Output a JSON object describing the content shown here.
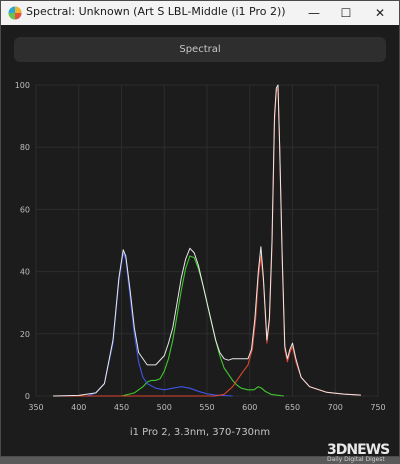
{
  "window": {
    "title": "Spectral: Unknown (Art S LBL-Middle (i1 Pro 2))",
    "minimize_glyph": "—",
    "maximize_glyph": "☐",
    "close_glyph": "✕"
  },
  "header": {
    "label": "Spectral"
  },
  "caption": "i1 Pro 2, 3.3nm, 370-730nm",
  "watermark": {
    "logo": "3DNEWS",
    "tagline": "Daily Digital Digest"
  },
  "colors": {
    "white": "#e8e8e8",
    "red": "#e0452e",
    "green": "#3fc92c",
    "blue": "#3f55e0",
    "grid": "#2c2c2c",
    "tick_text": "#bdbdbd"
  },
  "chart_data": {
    "type": "line",
    "title": "",
    "xlabel": "",
    "ylabel": "",
    "xlim": [
      350,
      750
    ],
    "ylim": [
      0,
      100
    ],
    "xticks": [
      350,
      400,
      450,
      500,
      550,
      600,
      650,
      700,
      750
    ],
    "yticks": [
      0,
      20,
      40,
      60,
      80,
      100
    ],
    "grid": true,
    "series": [
      {
        "color": "white",
        "points": [
          [
            370,
            0
          ],
          [
            400,
            0.2
          ],
          [
            420,
            1
          ],
          [
            430,
            4
          ],
          [
            440,
            18
          ],
          [
            447,
            38
          ],
          [
            452,
            47
          ],
          [
            455,
            45
          ],
          [
            460,
            34
          ],
          [
            465,
            22
          ],
          [
            470,
            14
          ],
          [
            480,
            10
          ],
          [
            490,
            10
          ],
          [
            500,
            13
          ],
          [
            505,
            17
          ],
          [
            510,
            22
          ],
          [
            515,
            30
          ],
          [
            520,
            38
          ],
          [
            525,
            44
          ],
          [
            530,
            47.5
          ],
          [
            535,
            46
          ],
          [
            540,
            42
          ],
          [
            545,
            36
          ],
          [
            550,
            30
          ],
          [
            555,
            24
          ],
          [
            560,
            18
          ],
          [
            565,
            14
          ],
          [
            570,
            12
          ],
          [
            575,
            11.5
          ],
          [
            580,
            12
          ],
          [
            590,
            12
          ],
          [
            598,
            12
          ],
          [
            602,
            15
          ],
          [
            606,
            25
          ],
          [
            610,
            40
          ],
          [
            613,
            48
          ],
          [
            616,
            38
          ],
          [
            620,
            18
          ],
          [
            623,
            25
          ],
          [
            626,
            50
          ],
          [
            629,
            90
          ],
          [
            631,
            99
          ],
          [
            633,
            100
          ],
          [
            635,
            80
          ],
          [
            638,
            45
          ],
          [
            641,
            16
          ],
          [
            644,
            12
          ],
          [
            647,
            15
          ],
          [
            650,
            17
          ],
          [
            654,
            12
          ],
          [
            660,
            6
          ],
          [
            670,
            3
          ],
          [
            690,
            1.2
          ],
          [
            710,
            0.6
          ],
          [
            730,
            0.3
          ]
        ]
      },
      {
        "color": "red",
        "points": [
          [
            370,
            0
          ],
          [
            560,
            0
          ],
          [
            570,
            0.5
          ],
          [
            580,
            3
          ],
          [
            590,
            7
          ],
          [
            598,
            10
          ],
          [
            603,
            15
          ],
          [
            607,
            25
          ],
          [
            610,
            38
          ],
          [
            613,
            45
          ],
          [
            616,
            37
          ],
          [
            620,
            17
          ],
          [
            623,
            24
          ],
          [
            626,
            48
          ],
          [
            629,
            88
          ],
          [
            631,
            98
          ],
          [
            633,
            99
          ],
          [
            635,
            79
          ],
          [
            638,
            44
          ],
          [
            641,
            15
          ],
          [
            644,
            11
          ],
          [
            647,
            14
          ],
          [
            650,
            16
          ],
          [
            654,
            11
          ],
          [
            660,
            6
          ],
          [
            670,
            3
          ],
          [
            690,
            1.2
          ],
          [
            710,
            0.6
          ],
          [
            730,
            0.3
          ]
        ]
      },
      {
        "color": "green",
        "points": [
          [
            370,
            0
          ],
          [
            450,
            0
          ],
          [
            465,
            1
          ],
          [
            475,
            3
          ],
          [
            480,
            4.5
          ],
          [
            485,
            5
          ],
          [
            490,
            5
          ],
          [
            495,
            5.5
          ],
          [
            500,
            8
          ],
          [
            505,
            12
          ],
          [
            510,
            18
          ],
          [
            515,
            26
          ],
          [
            520,
            34
          ],
          [
            525,
            41
          ],
          [
            530,
            45
          ],
          [
            535,
            44.5
          ],
          [
            540,
            41
          ],
          [
            545,
            36
          ],
          [
            550,
            30
          ],
          [
            555,
            24
          ],
          [
            560,
            18
          ],
          [
            565,
            13
          ],
          [
            570,
            9
          ],
          [
            575,
            7
          ],
          [
            580,
            5
          ],
          [
            585,
            3.5
          ],
          [
            590,
            2.5
          ],
          [
            598,
            2
          ],
          [
            605,
            2
          ],
          [
            610,
            3
          ],
          [
            614,
            2.5
          ],
          [
            618,
            1.5
          ],
          [
            625,
            0.5
          ],
          [
            640,
            0
          ]
        ]
      },
      {
        "color": "blue",
        "points": [
          [
            370,
            0
          ],
          [
            410,
            0
          ],
          [
            420,
            1
          ],
          [
            430,
            4
          ],
          [
            440,
            17
          ],
          [
            447,
            37
          ],
          [
            452,
            46
          ],
          [
            455,
            44
          ],
          [
            460,
            32
          ],
          [
            465,
            20
          ],
          [
            470,
            11
          ],
          [
            475,
            6
          ],
          [
            480,
            4
          ],
          [
            490,
            2.5
          ],
          [
            500,
            2
          ],
          [
            510,
            2.5
          ],
          [
            520,
            3
          ],
          [
            530,
            2.5
          ],
          [
            540,
            1.5
          ],
          [
            550,
            0.7
          ],
          [
            560,
            0.3
          ],
          [
            580,
            0
          ]
        ]
      }
    ]
  }
}
